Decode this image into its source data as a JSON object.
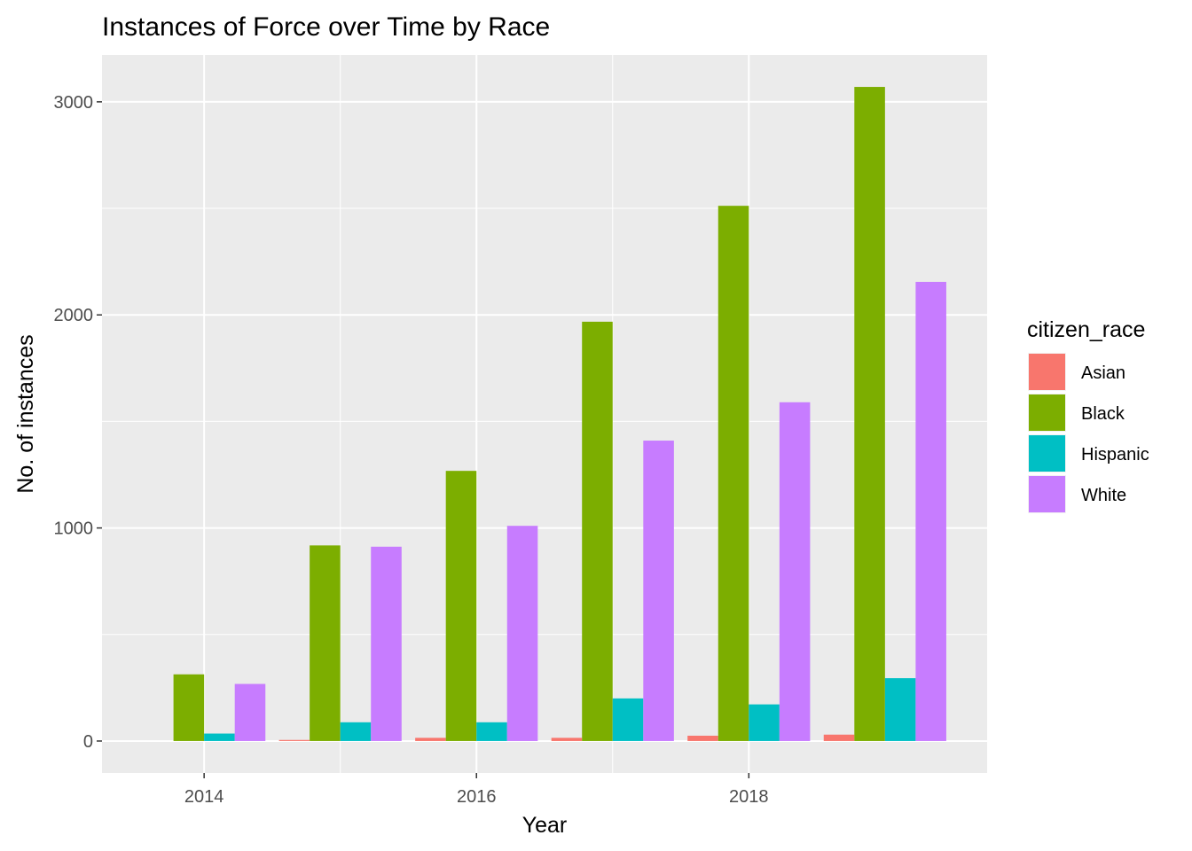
{
  "chart_data": {
    "type": "bar",
    "title": "Instances of Force over Time by Race",
    "xlabel": "Year",
    "ylabel": "No. of instances",
    "categories": [
      2014,
      2015,
      2016,
      2017,
      2018,
      2019
    ],
    "x_ticks": [
      2014,
      2016,
      2018
    ],
    "x_tick_labels": [
      "2014",
      "2016",
      "2018"
    ],
    "y_ticks": [
      0,
      1000,
      2000,
      3000
    ],
    "y_tick_labels": [
      "0",
      "1000",
      "2000",
      "3000"
    ],
    "xlim": [
      2013.25,
      2019.75
    ],
    "ylim": [
      -150,
      3220
    ],
    "grid": true,
    "legend_position": "right",
    "legend_title": "citizen_race",
    "series": [
      {
        "name": "Asian",
        "color": "#F8766D",
        "values": [
          null,
          5,
          15,
          15,
          25,
          30
        ]
      },
      {
        "name": "Black",
        "color": "#7CAE00",
        "values": [
          313,
          918,
          1268,
          1968,
          2512,
          3070
        ]
      },
      {
        "name": "Hispanic",
        "color": "#00BFC4",
        "values": [
          35,
          88,
          88,
          200,
          172,
          295
        ]
      },
      {
        "name": "White",
        "color": "#C77CFF",
        "values": [
          268,
          912,
          1010,
          1410,
          1590,
          2155
        ]
      }
    ]
  }
}
